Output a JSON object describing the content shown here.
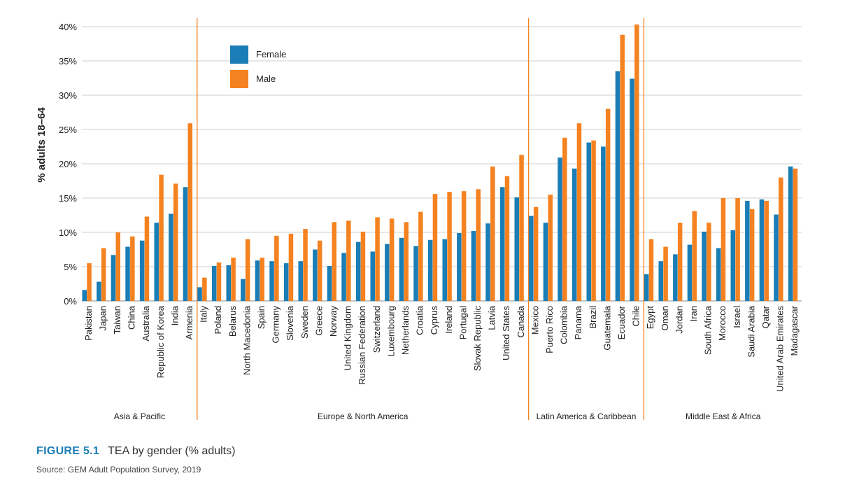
{
  "chart_data": {
    "type": "bar",
    "ylabel": "% adults 18–64",
    "ylim": [
      0,
      40
    ],
    "yticks": [
      "0%",
      "5%",
      "10%",
      "15%",
      "20%",
      "25%",
      "30%",
      "35%",
      "40%"
    ],
    "grid": true,
    "legend_position": "top-left",
    "series": [
      {
        "name": "Female",
        "color": "#1a7db5"
      },
      {
        "name": "Male",
        "color": "#f58220"
      }
    ],
    "groups": [
      {
        "name": "Asia & Pacific",
        "countries": [
          {
            "name": "Pakistan",
            "female": 1.6,
            "male": 5.5
          },
          {
            "name": "Japan",
            "female": 2.8,
            "male": 7.7
          },
          {
            "name": "Taiwan",
            "female": 6.7,
            "male": 10.0
          },
          {
            "name": "China",
            "female": 7.9,
            "male": 9.4
          },
          {
            "name": "Australia",
            "female": 8.8,
            "male": 12.3
          },
          {
            "name": "Republic of Korea",
            "female": 11.4,
            "male": 18.4
          },
          {
            "name": "India",
            "female": 12.7,
            "male": 17.1
          },
          {
            "name": "Armenia",
            "female": 16.6,
            "male": 25.9
          }
        ]
      },
      {
        "name": "Europe & North America",
        "countries": [
          {
            "name": "Italy",
            "female": 2.0,
            "male": 3.4
          },
          {
            "name": "Poland",
            "female": 5.1,
            "male": 5.6
          },
          {
            "name": "Belarus",
            "female": 5.2,
            "male": 6.3
          },
          {
            "name": "North Macedonia",
            "female": 3.2,
            "male": 9.0
          },
          {
            "name": "Spain",
            "female": 5.9,
            "male": 6.3
          },
          {
            "name": "Germany",
            "female": 5.8,
            "male": 9.5
          },
          {
            "name": "Slovenia",
            "female": 5.5,
            "male": 9.8
          },
          {
            "name": "Sweden",
            "female": 5.8,
            "male": 10.5
          },
          {
            "name": "Greece",
            "female": 7.5,
            "male": 8.8
          },
          {
            "name": "Norway",
            "female": 5.1,
            "male": 11.5
          },
          {
            "name": "United Kingdom",
            "female": 7.0,
            "male": 11.7
          },
          {
            "name": "Russian Federation",
            "female": 8.6,
            "male": 10.1
          },
          {
            "name": "Switzerland",
            "female": 7.2,
            "male": 12.2
          },
          {
            "name": "Luxembourg",
            "female": 8.3,
            "male": 12.0
          },
          {
            "name": "Netherlands",
            "female": 9.2,
            "male": 11.5
          },
          {
            "name": "Croatia",
            "female": 8.0,
            "male": 13.0
          },
          {
            "name": "Cyprus",
            "female": 8.9,
            "male": 15.6
          },
          {
            "name": "Ireland",
            "female": 9.0,
            "male": 15.9
          },
          {
            "name": "Portugal",
            "female": 9.9,
            "male": 16.0
          },
          {
            "name": "Slovak Republic",
            "female": 10.2,
            "male": 16.3
          },
          {
            "name": "Latvia",
            "female": 11.3,
            "male": 19.6
          },
          {
            "name": "United States",
            "female": 16.6,
            "male": 18.2
          },
          {
            "name": "Canada",
            "female": 15.1,
            "male": 21.3
          }
        ]
      },
      {
        "name": "Latin America & Caribbean",
        "countries": [
          {
            "name": "Mexico",
            "female": 12.4,
            "male": 13.7
          },
          {
            "name": "Puerto Rico",
            "female": 11.4,
            "male": 15.5
          },
          {
            "name": "Colombia",
            "female": 20.9,
            "male": 23.8
          },
          {
            "name": "Panama",
            "female": 19.3,
            "male": 25.9
          },
          {
            "name": "Brazil",
            "female": 23.1,
            "male": 23.4
          },
          {
            "name": "Guatemala",
            "female": 22.5,
            "male": 28.0
          },
          {
            "name": "Ecuador",
            "female": 33.5,
            "male": 38.8
          },
          {
            "name": "Chile",
            "female": 32.4,
            "male": 41.0
          }
        ]
      },
      {
        "name": "Middle East & Africa",
        "countries": [
          {
            "name": "Egypt",
            "female": 3.9,
            "male": 9.0
          },
          {
            "name": "Oman",
            "female": 5.8,
            "male": 7.9
          },
          {
            "name": "Jordan",
            "female": 6.8,
            "male": 11.4
          },
          {
            "name": "Iran",
            "female": 8.2,
            "male": 13.1
          },
          {
            "name": "South Africa",
            "female": 10.1,
            "male": 11.4
          },
          {
            "name": "Morocco",
            "female": 7.7,
            "male": 15.0
          },
          {
            "name": "Israel",
            "female": 10.3,
            "male": 15.0
          },
          {
            "name": "Saudi Arabia",
            "female": 14.6,
            "male": 13.4
          },
          {
            "name": "Qatar",
            "female": 14.8,
            "male": 14.6
          },
          {
            "name": "United Arab Emirates",
            "female": 12.6,
            "male": 18.0
          },
          {
            "name": "Madagascar",
            "female": 19.6,
            "male": 19.3
          }
        ]
      }
    ]
  },
  "figure": {
    "number": "FIGURE 5.1",
    "title": "TEA by gender (% adults)",
    "source": "Source: GEM Adult Population Survey, 2019"
  }
}
